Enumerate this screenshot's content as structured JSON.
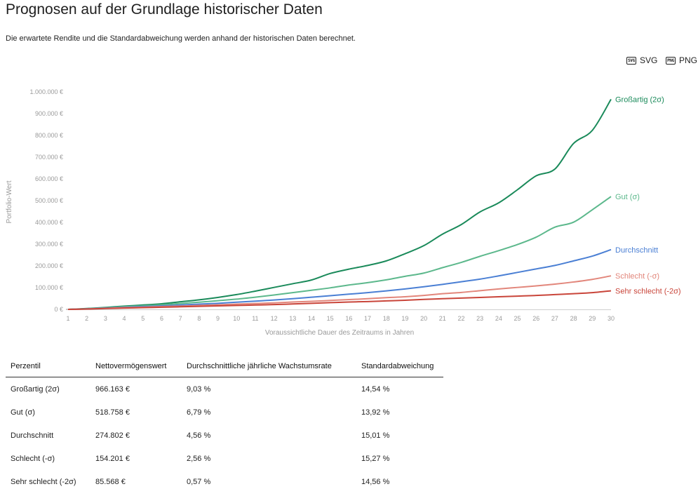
{
  "header": {
    "title": "Prognosen auf der Grundlage historischer Daten",
    "subtitle": "Die erwartete Rendite und die Standardabweichung werden anhand der historischen Daten berechnet."
  },
  "export": {
    "svg_icon": "SVG",
    "svg_label": "SVG",
    "png_icon": "PNG",
    "png_label": "PNG"
  },
  "chart_data": {
    "type": "line",
    "xlabel": "Voraussichtliche Dauer des Zeitraums in Jahren",
    "ylabel": "Portfolio-Wert",
    "xlim": [
      1,
      30
    ],
    "ylim": [
      0,
      1000000
    ],
    "x_ticks": [
      "1",
      "2",
      "3",
      "4",
      "5",
      "6",
      "7",
      "8",
      "9",
      "10",
      "11",
      "12",
      "13",
      "14",
      "15",
      "16",
      "17",
      "18",
      "19",
      "20",
      "21",
      "22",
      "23",
      "24",
      "25",
      "26",
      "27",
      "28",
      "29",
      "30"
    ],
    "y_ticks": [
      {
        "value": 0,
        "label": "0 €"
      },
      {
        "value": 100000,
        "label": "100.000 €"
      },
      {
        "value": 200000,
        "label": "200.000 €"
      },
      {
        "value": 300000,
        "label": "300.000 €"
      },
      {
        "value": 400000,
        "label": "400.000 €"
      },
      {
        "value": 500000,
        "label": "500.000 €"
      },
      {
        "value": 600000,
        "label": "600.000 €"
      },
      {
        "value": 700000,
        "label": "700.000 €"
      },
      {
        "value": 800000,
        "label": "800.000 €"
      },
      {
        "value": 900000,
        "label": "900.000 €"
      },
      {
        "value": 1000000,
        "label": "1.000.000 €"
      }
    ],
    "x": [
      1,
      2,
      3,
      4,
      5,
      6,
      7,
      8,
      9,
      10,
      11,
      12,
      13,
      14,
      15,
      16,
      17,
      18,
      19,
      20,
      21,
      22,
      23,
      24,
      25,
      26,
      27,
      28,
      29,
      30
    ],
    "series": [
      {
        "name": "Großartig (2σ)",
        "color": "#1a8a5a",
        "values": [
          0,
          4000,
          9000,
          15000,
          20000,
          26000,
          35000,
          44000,
          55000,
          68000,
          84000,
          101000,
          118000,
          135000,
          165000,
          185000,
          202000,
          223000,
          256000,
          293000,
          346000,
          390000,
          448000,
          490000,
          550000,
          614000,
          645000,
          763000,
          823000,
          966163
        ]
      },
      {
        "name": "Gut (σ)",
        "color": "#5cb88c",
        "values": [
          0,
          3000,
          7000,
          12000,
          16000,
          21000,
          27000,
          33000,
          40000,
          47000,
          56000,
          66000,
          77000,
          88000,
          99000,
          112000,
          123000,
          136000,
          152000,
          167000,
          192000,
          216000,
          244000,
          270000,
          298000,
          332000,
          378000,
          401000,
          458000,
          518758
        ]
      },
      {
        "name": "Durchschnitt",
        "color": "#4a7fd4",
        "values": [
          0,
          2500,
          6000,
          9500,
          13000,
          16000,
          20000,
          24000,
          28000,
          33000,
          38000,
          43000,
          49000,
          56000,
          63000,
          70000,
          77000,
          85000,
          94000,
          104000,
          115000,
          127000,
          139000,
          154000,
          170000,
          186000,
          202000,
          223000,
          245000,
          274802
        ]
      },
      {
        "name": "Schlecht (-σ)",
        "color": "#e2867b",
        "values": [
          0,
          2000,
          5000,
          8000,
          10000,
          13000,
          15000,
          18000,
          21000,
          24000,
          27000,
          30000,
          34000,
          37000,
          41000,
          45000,
          49000,
          54000,
          58000,
          64000,
          72000,
          78000,
          86000,
          94000,
          101000,
          108000,
          116000,
          126000,
          138000,
          154201
        ]
      },
      {
        "name": "Sehr schlecht (-2σ)",
        "color": "#c9453a",
        "values": [
          0,
          1500,
          4000,
          6000,
          8000,
          10000,
          12000,
          14000,
          16000,
          18000,
          20000,
          22000,
          25000,
          28000,
          31000,
          34000,
          36000,
          39000,
          42000,
          46000,
          49000,
          52000,
          55000,
          58000,
          61000,
          64000,
          68000,
          72000,
          77000,
          85568
        ]
      }
    ]
  },
  "table": {
    "headers": [
      "Perzentil",
      "Nettovermögenswert",
      "Durchschnittliche jährliche Wachstumsrate",
      "Standardabweichung"
    ],
    "rows": [
      [
        "Großartig (2σ)",
        "966.163 €",
        "9,03 %",
        "14,54 %"
      ],
      [
        "Gut (σ)",
        "518.758 €",
        "6,79 %",
        "13,92 %"
      ],
      [
        "Durchschnitt",
        "274.802 €",
        "4,56 %",
        "15,01 %"
      ],
      [
        "Schlecht (-σ)",
        "154.201 €",
        "2,56 %",
        "15,27 %"
      ],
      [
        "Sehr schlecht (-2σ)",
        "85.568 €",
        "0,57 %",
        "14,56 %"
      ]
    ]
  }
}
